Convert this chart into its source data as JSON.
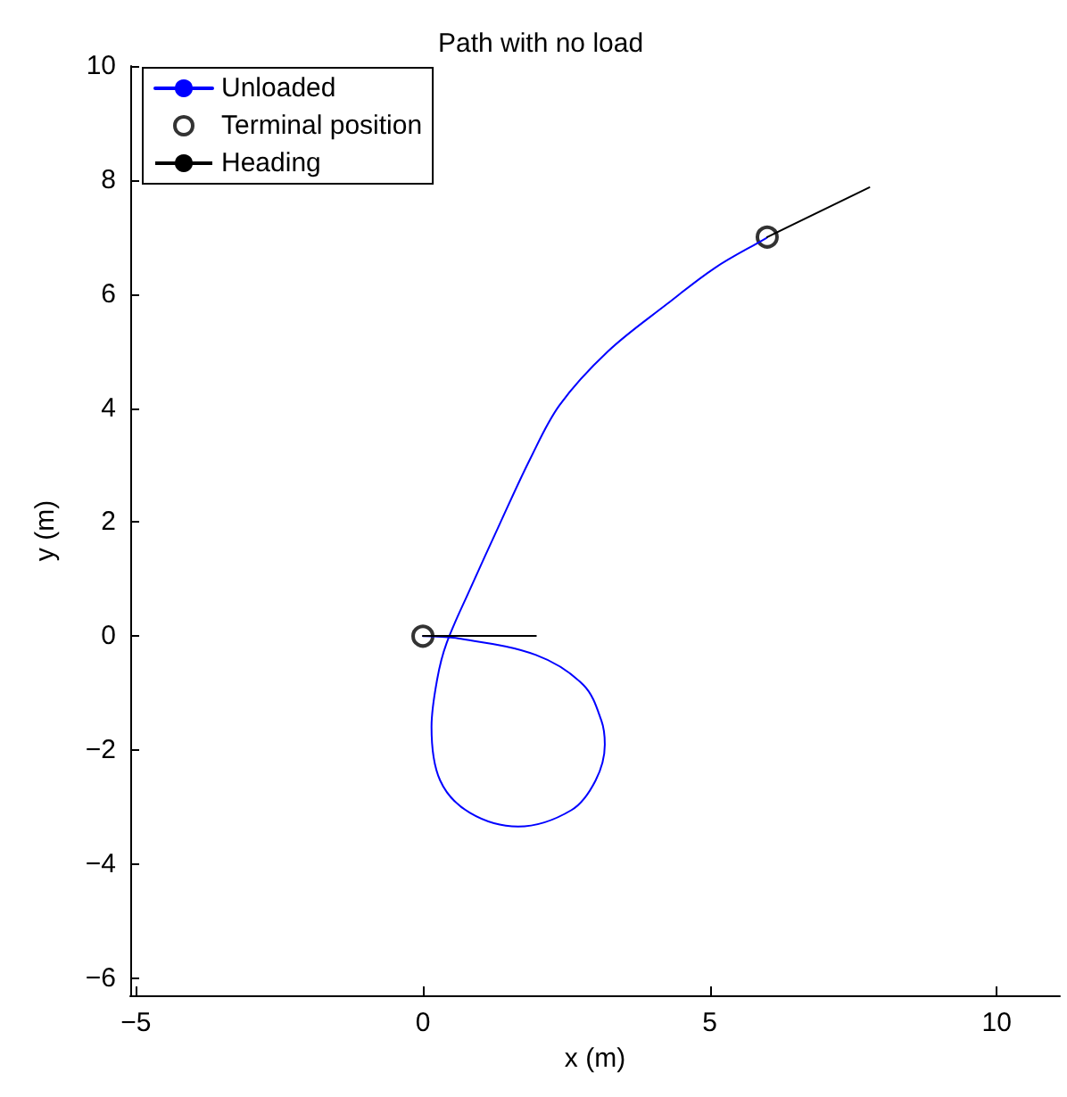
{
  "chart_data": {
    "type": "line",
    "title": "Path with no load",
    "xlabel": "x (m)",
    "ylabel": "y (m)",
    "xlim": [
      -5.1,
      11.1
    ],
    "ylim": [
      -6.3,
      10
    ],
    "xticks": [
      -5,
      0,
      5,
      10
    ],
    "yticks": [
      -6,
      -4,
      -2,
      0,
      2,
      4,
      6,
      8,
      10
    ],
    "grid": false,
    "legend": "top left",
    "series": [
      {
        "name": "Unloaded",
        "color": "#0000ff",
        "marker": "none",
        "line_style": "solid",
        "x": [
          0,
          0.61,
          1.97,
          2.8,
          3.11,
          3.17,
          3.01,
          2.59,
          1.66,
          0.82,
          0.3,
          0.15,
          0.25,
          0.41,
          0.82,
          1.34,
          1.87,
          2.38,
          3.22,
          4.26,
          5.09,
          5.98,
          6
        ],
        "values": [
          0,
          -0.04,
          -0.33,
          -0.86,
          -1.48,
          -1.9,
          -2.53,
          -3.05,
          -3.34,
          -3.1,
          -2.53,
          -1.59,
          -0.75,
          -0.13,
          0.82,
          1.97,
          3.11,
          4.05,
          4.99,
          5.83,
          6.46,
          6.98,
          7
        ]
      },
      {
        "name": "Terminal position",
        "type": "scatter",
        "color": "#000000",
        "marker": "circle",
        "x": [
          0,
          6
        ],
        "values": [
          0,
          7
        ]
      },
      {
        "name": "Heading",
        "color": "#000000",
        "line_style": "solid",
        "x": [
          0,
          1.97,
          null,
          6,
          7.78
        ],
        "values": [
          0,
          0,
          null,
          7,
          7.87
        ]
      }
    ]
  }
}
